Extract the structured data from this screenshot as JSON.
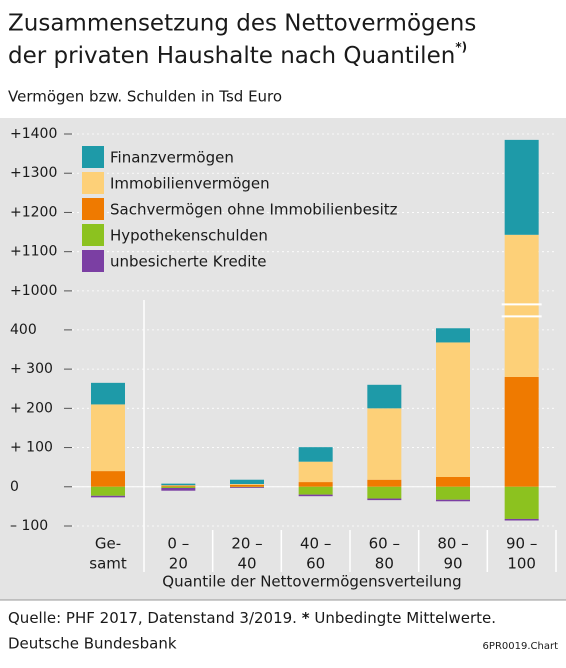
{
  "chart_data": {
    "type": "stacked-bar",
    "title_lines": [
      "Zusammensetzung des Nettovermögens",
      "der privaten Haushalte nach Quantilen"
    ],
    "title_note": "*)",
    "subtitle": "Vermögen bzw. Schulden in Tsd Euro",
    "x_label": "Quantile der Nettovermögensverteilung",
    "categories": [
      [
        "Ge-",
        "samt"
      ],
      [
        "0 –",
        "20"
      ],
      [
        "20 –",
        "40"
      ],
      [
        "40 –",
        "60"
      ],
      [
        "60 –",
        "80"
      ],
      [
        "80 –",
        "90"
      ],
      [
        "90 –",
        "100"
      ]
    ],
    "series": [
      {
        "name": "Finanzvermögen",
        "color": "#1e9aa8",
        "values": [
          55,
          4,
          11,
          37,
          60,
          57,
          242
        ]
      },
      {
        "name": "Immobilienvermögen",
        "color": "#fdd078",
        "values": [
          170,
          1,
          2,
          52,
          182,
          343,
          863
        ]
      },
      {
        "name": "Sachvermögen ohne Immobilienbesitz",
        "color": "#ef7a00",
        "values": [
          40,
          3,
          5,
          12,
          18,
          25,
          280
        ]
      },
      {
        "name": "Hypothekenschulden",
        "color": "#8cc21f",
        "values": [
          -23,
          -3,
          -1,
          -20,
          -30,
          -33,
          -82
        ]
      },
      {
        "name": "unbesicherte Kredite",
        "color": "#7b3fa3",
        "values": [
          -4,
          -7,
          -2,
          -4,
          -4,
          -4,
          -4
        ]
      }
    ],
    "ylim": [
      -100,
      1400
    ],
    "axis_break": [
      400,
      1000
    ],
    "yticks": [
      {
        "value": 1400,
        "label": "+1400"
      },
      {
        "value": 1300,
        "label": "+1300"
      },
      {
        "value": 1200,
        "label": "+1200"
      },
      {
        "value": 1100,
        "label": "+1100"
      },
      {
        "value": 1000,
        "label": "+1000"
      },
      400,
      {
        "value": 300,
        "label": "+  300"
      },
      {
        "value": 200,
        "label": "+  200"
      },
      {
        "value": 100,
        "label": "+  100"
      },
      0,
      {
        "value": -100,
        "label": "– 100"
      }
    ],
    "legend": "upper left",
    "source": "Quelle: PHF 2017, Datenstand 3/2019.",
    "note_marker": "*",
    "note": "Unbedingte Mittelwerte.",
    "publisher": "Deutsche Bundesbank",
    "code": "6PR0019.Chart"
  }
}
